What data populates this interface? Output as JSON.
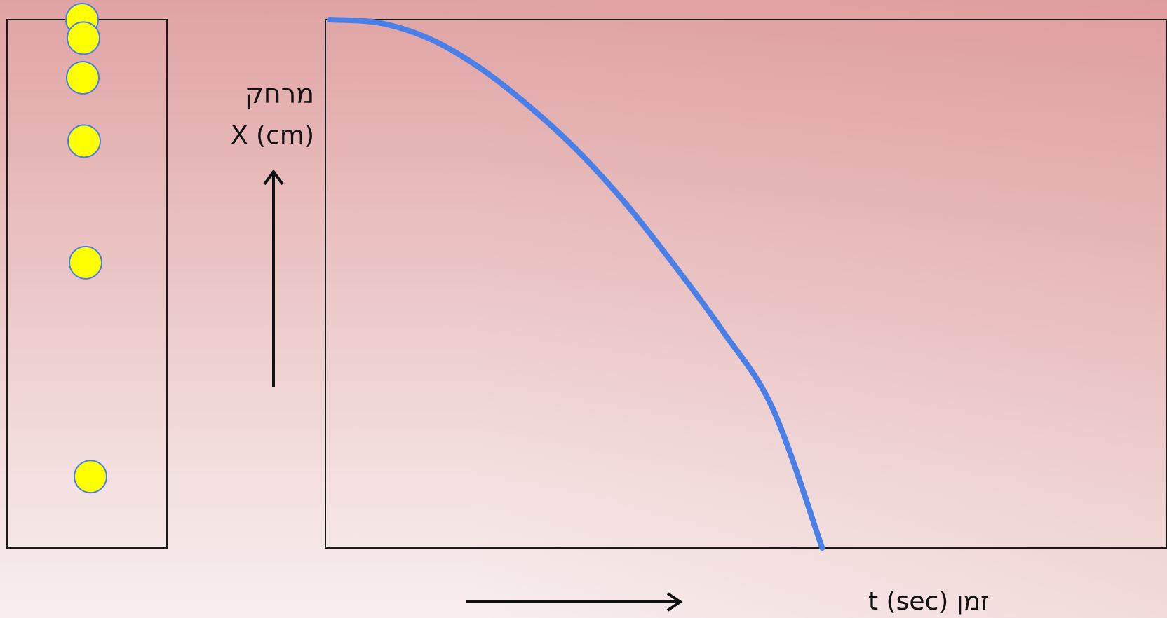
{
  "chart_data": {
    "type": "line",
    "title": "",
    "ylabel_hebrew": "מרחק",
    "ylabel": "X (cm)",
    "xlabel": "זמן t (sec)",
    "series": [
      {
        "color": "#4a7fe8",
        "x": [
          0,
          1,
          2,
          3,
          4,
          5,
          6,
          7,
          8,
          9,
          10
        ],
        "y": [
          100,
          99.4,
          96.5,
          91.2,
          84,
          75.5,
          65.3,
          53.5,
          40.8,
          26.3,
          0
        ]
      }
    ],
    "xlim": [
      0,
      17
    ],
    "ylim": [
      0,
      100
    ],
    "grid": false,
    "ball_positions": [
      100,
      96.5,
      89,
      77,
      54,
      13.5
    ],
    "ball_color": "#ffff00",
    "ball_outline": "#4a7fe8"
  }
}
